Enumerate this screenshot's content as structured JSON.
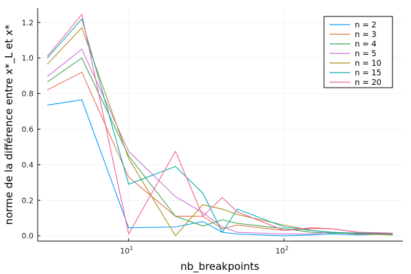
{
  "chart_data": {
    "type": "line",
    "title": "",
    "xlabel": "nb_breakpoints",
    "ylabel": "norme de la différence entre x*_L et x*",
    "xscale": "log10",
    "xlim": [
      2.6,
      580
    ],
    "ylim": [
      -0.03,
      1.28
    ],
    "grid": true,
    "legend_position": "top-right",
    "x_ticks": [
      {
        "value": 10,
        "base": "10",
        "exp": "1"
      },
      {
        "value": 100,
        "base": "10",
        "exp": "2"
      }
    ],
    "y_ticks": [
      {
        "value": 0.0,
        "label": "0.0"
      },
      {
        "value": 0.2,
        "label": "0.2"
      },
      {
        "value": 0.4,
        "label": "0.4"
      },
      {
        "value": 0.6,
        "label": "0.6"
      },
      {
        "value": 0.8,
        "label": "0.8"
      },
      {
        "value": 1.0,
        "label": "1.0"
      },
      {
        "value": 1.2,
        "label": "1.2"
      }
    ],
    "x": [
      3,
      5,
      10,
      20,
      30,
      40,
      50,
      100,
      150,
      200,
      300,
      500
    ],
    "series": [
      {
        "name": "n = 2",
        "color": "#009AFA",
        "values": [
          0.735,
          0.765,
          0.045,
          0.05,
          0.08,
          0.02,
          0.01,
          0.0,
          0.005,
          0.01,
          0.005,
          0.01
        ]
      },
      {
        "name": "n = 3",
        "color": "#E36F47",
        "values": [
          0.82,
          0.92,
          0.33,
          0.11,
          0.11,
          0.04,
          0.06,
          0.03,
          0.04,
          0.04,
          0.02,
          0.01
        ]
      },
      {
        "name": "n = 4",
        "color": "#3EA44E",
        "values": [
          0.865,
          1.0,
          0.45,
          0.11,
          0.055,
          0.09,
          0.07,
          0.04,
          0.02,
          0.015,
          0.015,
          0.005
        ]
      },
      {
        "name": "n = 5",
        "color": "#C371D2",
        "values": [
          0.895,
          1.05,
          0.475,
          0.22,
          0.13,
          0.05,
          0.02,
          0.01,
          0.01,
          0.02,
          0.01,
          0.01
        ]
      },
      {
        "name": "n = 10",
        "color": "#AC8D18",
        "values": [
          0.965,
          1.17,
          0.435,
          0.0,
          0.175,
          0.15,
          0.12,
          0.06,
          0.03,
          0.02,
          0.01,
          0.005
        ]
      },
      {
        "name": "n = 15",
        "color": "#00A9AD",
        "values": [
          1.0,
          1.22,
          0.29,
          0.39,
          0.24,
          0.02,
          0.15,
          0.05,
          0.03,
          0.02,
          0.015,
          0.01
        ]
      },
      {
        "name": "n = 20",
        "color": "#ED5D92",
        "values": [
          1.01,
          1.245,
          0.01,
          0.475,
          0.11,
          0.215,
          0.135,
          0.03,
          0.045,
          0.04,
          0.02,
          0.015
        ]
      }
    ]
  }
}
